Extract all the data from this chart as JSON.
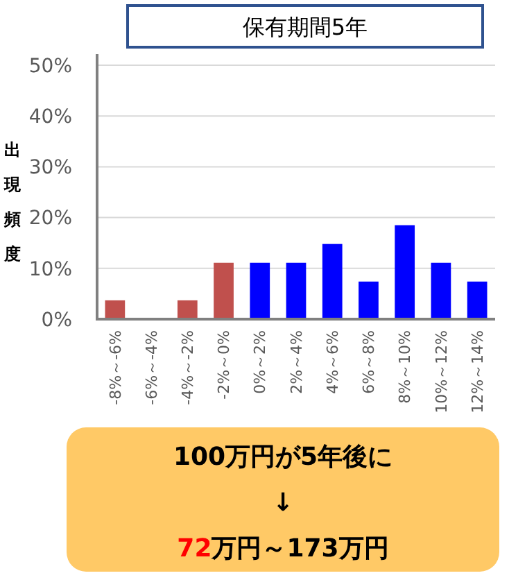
{
  "chart_data": {
    "type": "bar",
    "title": "保有期間5年",
    "ylabel": "出現頻度",
    "categories": [
      "-8%～-6%",
      "-6%～-4%",
      "-4%～-2%",
      "-2%～0%",
      "0%～2%",
      "2%～4%",
      "4%～6%",
      "6%～8%",
      "8%～10%",
      "10%～12%",
      "12%～14%"
    ],
    "values": [
      3.7,
      0,
      3.7,
      11.1,
      11.1,
      11.1,
      14.8,
      7.4,
      18.5,
      11.1,
      7.4
    ],
    "colors": [
      "#c0504d",
      "#c0504d",
      "#c0504d",
      "#c0504d",
      "#0000ff",
      "#0000ff",
      "#0000ff",
      "#0000ff",
      "#0000ff",
      "#0000ff",
      "#0000ff"
    ],
    "ylim": [
      0,
      50
    ],
    "yticks": [
      {
        "value": 0,
        "label": "0%"
      },
      {
        "value": 10,
        "label": "10%"
      },
      {
        "value": 20,
        "label": "20%"
      },
      {
        "value": 30,
        "label": "30%"
      },
      {
        "value": 40,
        "label": "40%"
      },
      {
        "value": 50,
        "label": "50%"
      }
    ],
    "grid": "y",
    "annotations": [
      "100万円が5年後に",
      "↓",
      "72万円～173万円"
    ]
  }
}
